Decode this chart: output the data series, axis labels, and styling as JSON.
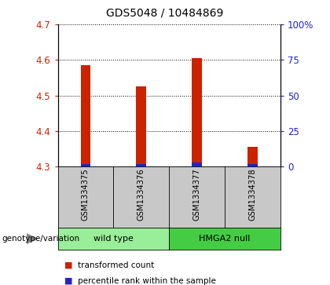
{
  "title": "GDS5048 / 10484869",
  "samples": [
    "GSM1334375",
    "GSM1334376",
    "GSM1334377",
    "GSM1334378"
  ],
  "red_values": [
    4.585,
    4.525,
    4.605,
    4.355
  ],
  "blue_values": [
    4.308,
    4.308,
    4.312,
    4.307
  ],
  "base": 4.3,
  "ylim_min": 4.3,
  "ylim_max": 4.7,
  "left_yticks": [
    4.3,
    4.4,
    4.5,
    4.6,
    4.7
  ],
  "right_yticks": [
    0,
    25,
    50,
    75,
    100
  ],
  "right_ytick_labels": [
    "0",
    "25",
    "50",
    "75",
    "100%"
  ],
  "bar_width": 0.18,
  "red_color": "#CC2200",
  "blue_color": "#2222CC",
  "left_tick_color": "#CC2200",
  "right_tick_color": "#2222CC",
  "bg_label": "#C8C8C8",
  "group_configs": [
    {
      "label": "wild type",
      "start": 0,
      "end": 2,
      "color": "#99EE99"
    },
    {
      "label": "HMGA2 null",
      "start": 2,
      "end": 4,
      "color": "#44CC44"
    }
  ],
  "legend_red": "transformed count",
  "legend_blue": "percentile rank within the sample",
  "genotype_label": "genotype/variation"
}
